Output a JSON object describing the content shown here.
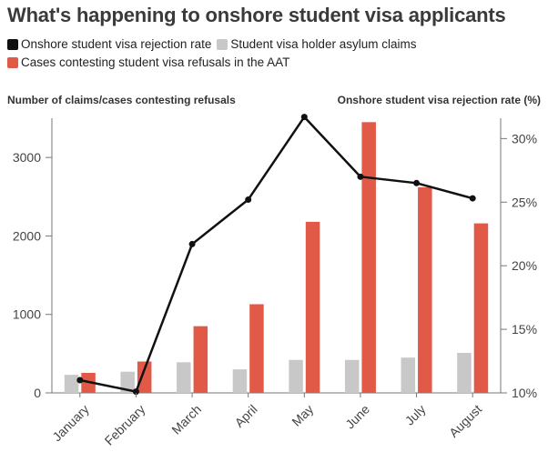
{
  "title": "What's happening to onshore student visa applicants",
  "legend": [
    {
      "label": "Onshore student visa rejection rate",
      "color": "#111111"
    },
    {
      "label": "Student visa holder asylum claims",
      "color": "#c8c8c8"
    },
    {
      "label": "Cases contesting student visa refusals in the AAT",
      "color": "#e05a47"
    }
  ],
  "chart_data": {
    "type": "bar",
    "categories": [
      "January",
      "February",
      "March",
      "April",
      "May",
      "June",
      "July",
      "August"
    ],
    "ylabel_left": "Number of claims/cases contesting refusals",
    "ylabel_right": "Onshore student visa rejection rate (%)",
    "ylim_left": [
      0,
      3500
    ],
    "yticks_left": [
      0,
      1000,
      2000,
      3000
    ],
    "ylim_right": [
      10,
      31.6
    ],
    "yticks_right": [
      10,
      15,
      20,
      25,
      30
    ],
    "yticklabels_right": [
      "10%",
      "15%",
      "20%",
      "25%",
      "30%"
    ],
    "grid": false,
    "legend_position": "top-left",
    "series": [
      {
        "name": "Student visa holder asylum claims",
        "type": "bar",
        "axis": "left",
        "color": "#c8c8c8",
        "values": [
          230,
          270,
          390,
          300,
          420,
          420,
          450,
          510
        ]
      },
      {
        "name": "Cases contesting student visa refusals in the AAT",
        "type": "bar",
        "axis": "left",
        "color": "#e05a47",
        "values": [
          255,
          400,
          850,
          1130,
          2180,
          3450,
          2620,
          2160
        ]
      },
      {
        "name": "Onshore student visa rejection rate",
        "type": "line",
        "axis": "right",
        "color": "#111111",
        "values": [
          11.0,
          10.1,
          21.7,
          25.2,
          31.7,
          27.0,
          26.5,
          25.3
        ]
      }
    ]
  }
}
